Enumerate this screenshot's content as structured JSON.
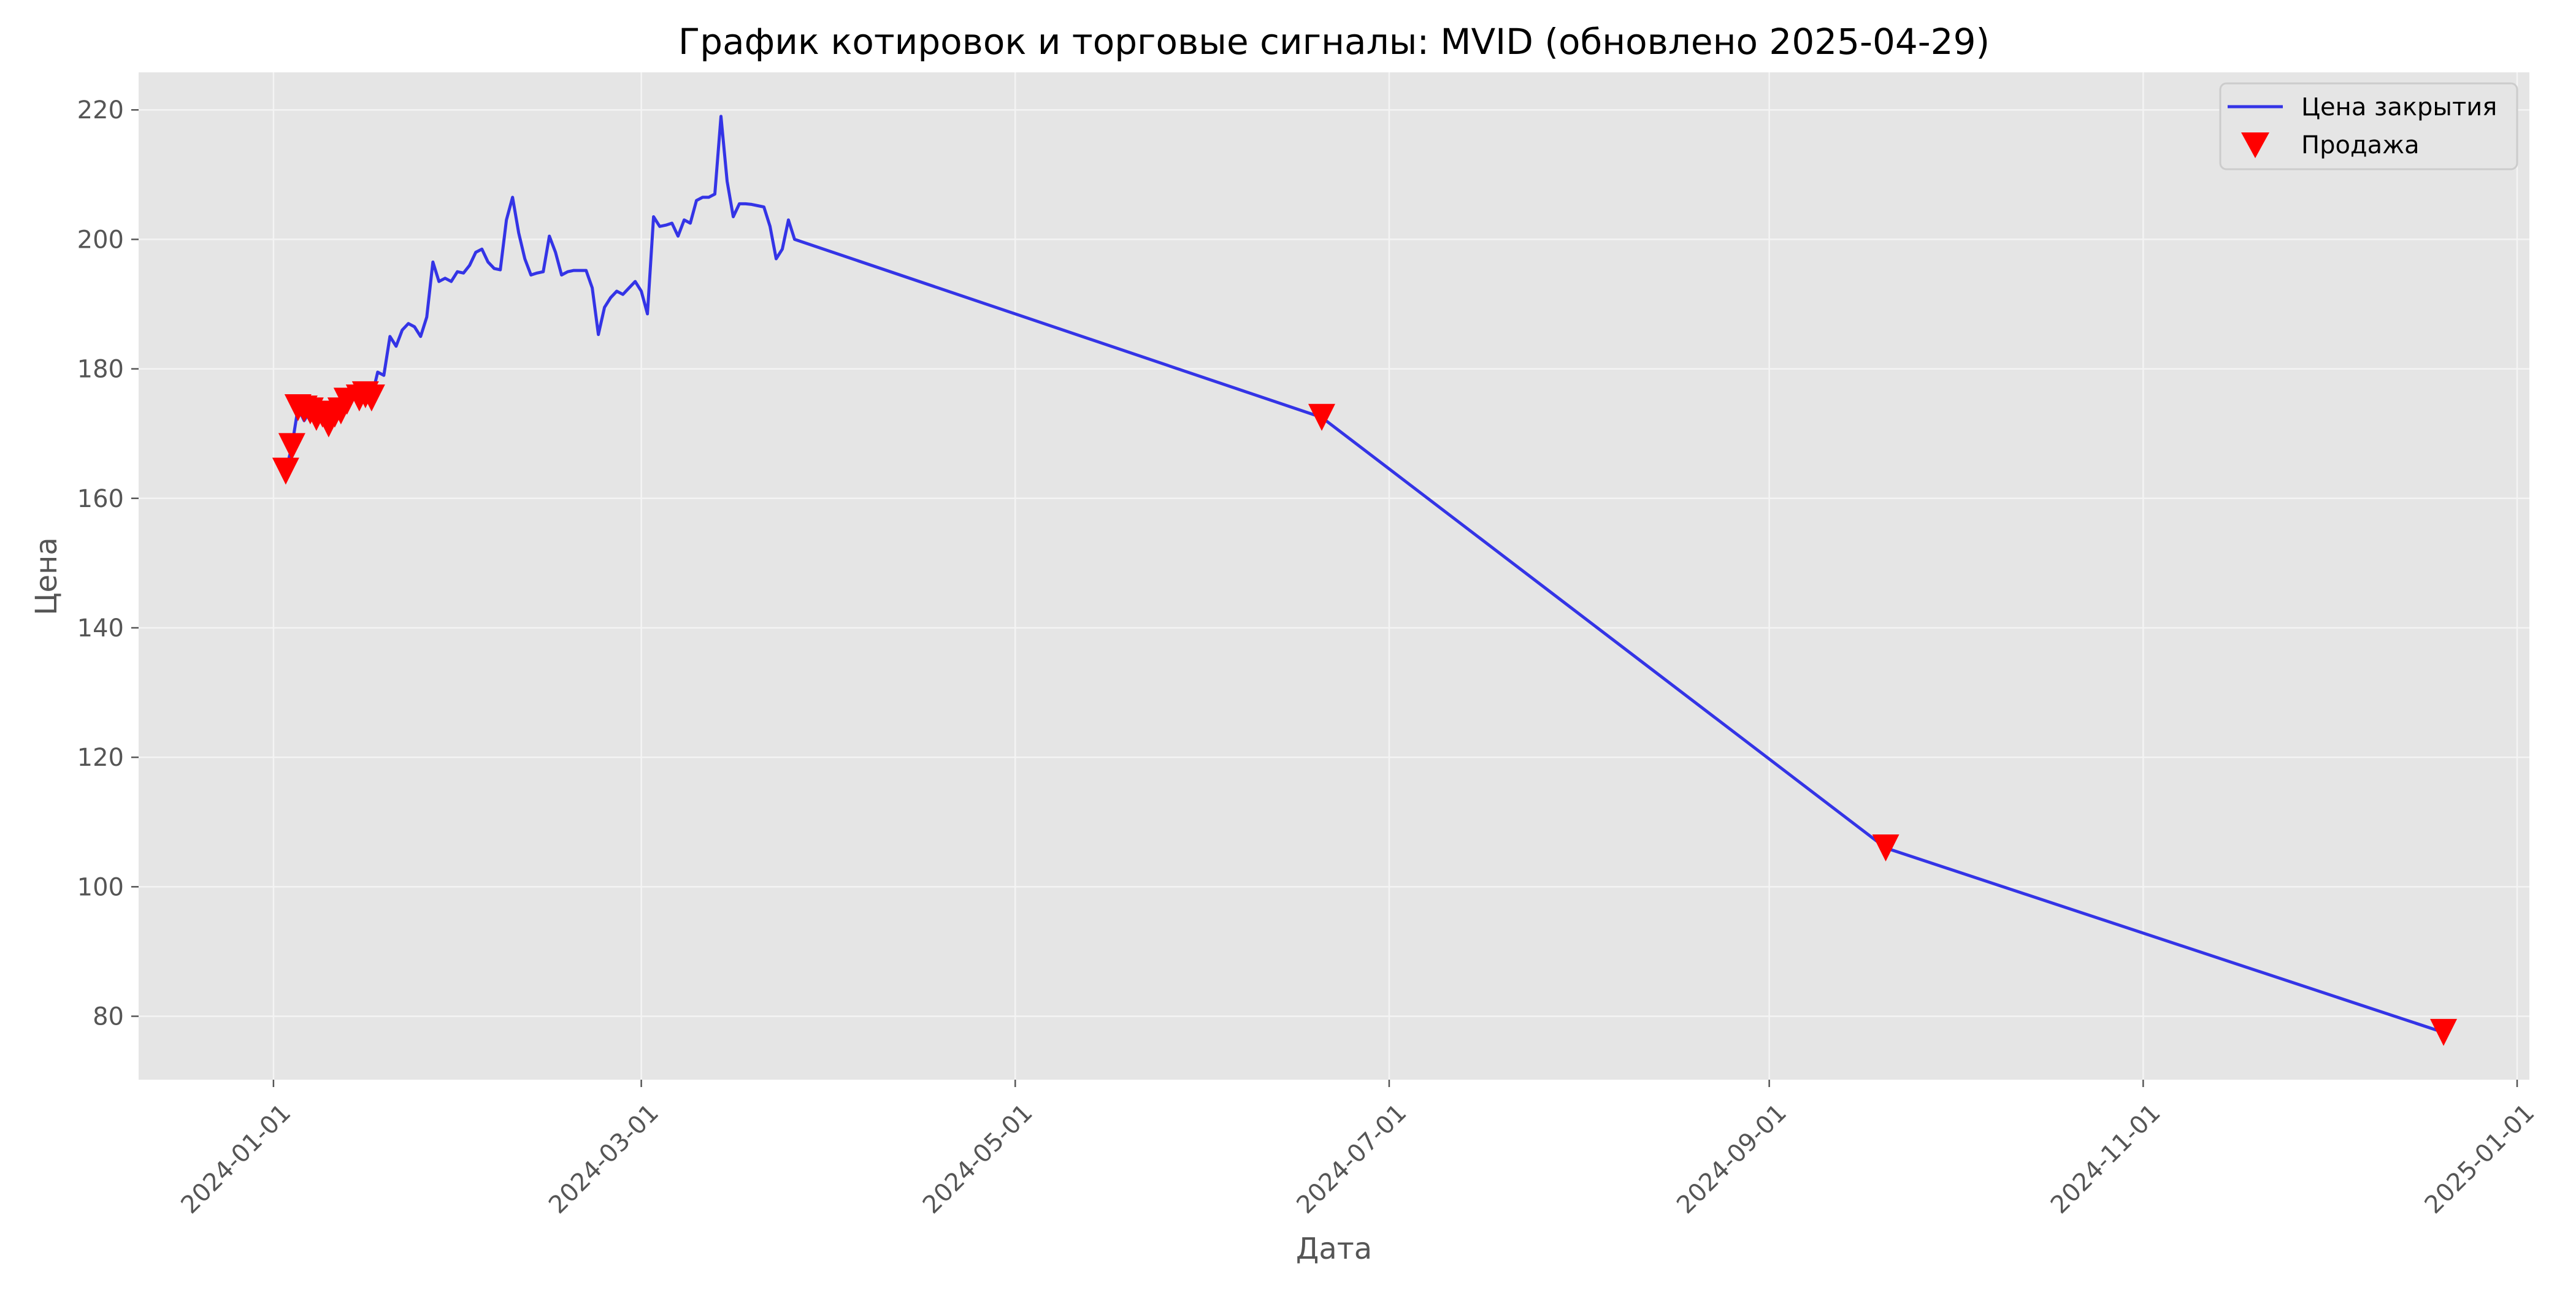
{
  "chart_data": {
    "type": "line",
    "title": "График котировок и торговые сигналы: MVID (обновлено 2025-04-29)",
    "xlabel": "Дата",
    "ylabel": "Цена",
    "x_axis_type": "date",
    "xlim": [
      "2023-12-10",
      "2025-01-03"
    ],
    "ylim": [
      70.2,
      225.8
    ],
    "x_ticks": [
      "2024-01-01",
      "2024-03-01",
      "2024-05-01",
      "2024-07-01",
      "2024-09-01",
      "2024-11-01",
      "2025-01-01"
    ],
    "y_ticks": [
      80,
      100,
      120,
      140,
      160,
      180,
      200,
      220
    ],
    "grid": true,
    "legend_position": "top-right",
    "colors": {
      "background": "#e5e5e5",
      "grid": "#f4f4f4",
      "line": "#3434e6",
      "sell": "#ff0000",
      "text": "#555555"
    },
    "series": [
      {
        "name": "Цена закрытия",
        "type": "line",
        "points": [
          [
            "2024-01-03",
            164.2
          ],
          [
            "2024-01-04",
            168.0
          ],
          [
            "2024-01-05",
            174.0
          ],
          [
            "2024-01-06",
            172.0
          ],
          [
            "2024-01-07",
            173.5
          ],
          [
            "2024-01-08",
            172.0
          ],
          [
            "2024-01-09",
            173.0
          ],
          [
            "2024-01-10",
            171.5
          ],
          [
            "2024-01-11",
            173.0
          ],
          [
            "2024-01-12",
            172.5
          ],
          [
            "2024-01-13",
            175.0
          ],
          [
            "2024-01-14",
            176.0
          ],
          [
            "2024-01-15",
            175.5
          ],
          [
            "2024-01-16",
            176.5
          ],
          [
            "2024-01-17",
            175.5
          ],
          [
            "2024-01-18",
            179.5
          ],
          [
            "2024-01-19",
            179.0
          ],
          [
            "2024-01-20",
            185.0
          ],
          [
            "2024-01-21",
            183.5
          ],
          [
            "2024-01-22",
            186.0
          ],
          [
            "2024-01-23",
            187.0
          ],
          [
            "2024-01-24",
            186.5
          ],
          [
            "2024-01-25",
            185.0
          ],
          [
            "2024-01-26",
            188.0
          ],
          [
            "2024-01-27",
            196.5
          ],
          [
            "2024-01-28",
            193.5
          ],
          [
            "2024-01-29",
            194.0
          ],
          [
            "2024-01-30",
            193.5
          ],
          [
            "2024-01-31",
            195.0
          ],
          [
            "2024-02-01",
            194.8
          ],
          [
            "2024-02-02",
            196.0
          ],
          [
            "2024-02-03",
            198.0
          ],
          [
            "2024-02-04",
            198.5
          ],
          [
            "2024-02-05",
            196.5
          ],
          [
            "2024-02-06",
            195.5
          ],
          [
            "2024-02-07",
            195.3
          ],
          [
            "2024-02-08",
            203.0
          ],
          [
            "2024-02-09",
            206.5
          ],
          [
            "2024-02-10",
            201.0
          ],
          [
            "2024-02-11",
            197.0
          ],
          [
            "2024-02-12",
            194.5
          ],
          [
            "2024-02-13",
            194.8
          ],
          [
            "2024-02-14",
            195.0
          ],
          [
            "2024-02-15",
            200.5
          ],
          [
            "2024-02-16",
            198.0
          ],
          [
            "2024-02-17",
            194.5
          ],
          [
            "2024-02-18",
            195.0
          ],
          [
            "2024-02-19",
            195.2
          ],
          [
            "2024-02-20",
            195.2
          ],
          [
            "2024-02-21",
            195.2
          ],
          [
            "2024-02-22",
            192.5
          ],
          [
            "2024-02-23",
            185.3
          ],
          [
            "2024-02-24",
            189.5
          ],
          [
            "2024-02-25",
            191.0
          ],
          [
            "2024-02-26",
            192.0
          ],
          [
            "2024-02-27",
            191.5
          ],
          [
            "2024-02-28",
            192.5
          ],
          [
            "2024-02-29",
            193.5
          ],
          [
            "2024-03-01",
            192.0
          ],
          [
            "2024-03-02",
            188.5
          ],
          [
            "2024-03-03",
            203.5
          ],
          [
            "2024-03-04",
            202.0
          ],
          [
            "2024-03-05",
            202.2
          ],
          [
            "2024-03-06",
            202.5
          ],
          [
            "2024-03-07",
            200.5
          ],
          [
            "2024-03-08",
            203.0
          ],
          [
            "2024-03-09",
            202.5
          ],
          [
            "2024-03-10",
            206.0
          ],
          [
            "2024-03-11",
            206.5
          ],
          [
            "2024-03-12",
            206.5
          ],
          [
            "2024-03-13",
            207.0
          ],
          [
            "2024-03-14",
            219.0
          ],
          [
            "2024-03-15",
            209.0
          ],
          [
            "2024-03-16",
            203.5
          ],
          [
            "2024-03-17",
            205.5
          ],
          [
            "2024-03-18",
            205.5
          ],
          [
            "2024-03-19",
            205.4
          ],
          [
            "2024-03-20",
            205.2
          ],
          [
            "2024-03-21",
            205.0
          ],
          [
            "2024-03-22",
            202.0
          ],
          [
            "2024-03-23",
            197.0
          ],
          [
            "2024-03-24",
            198.5
          ],
          [
            "2024-03-25",
            203.0
          ],
          [
            "2024-03-26",
            200.0
          ],
          [
            "2024-06-20",
            172.5
          ],
          [
            "2024-09-20",
            106.0
          ],
          [
            "2024-12-20",
            77.5
          ]
        ]
      },
      {
        "name": "Продажа",
        "type": "scatter",
        "marker": "triangle-down",
        "points": [
          [
            "2024-01-03",
            164.2
          ],
          [
            "2024-01-04",
            168.0
          ],
          [
            "2024-01-05",
            174.0
          ],
          [
            "2024-01-06",
            173.8
          ],
          [
            "2024-01-07",
            173.5
          ],
          [
            "2024-01-08",
            172.5
          ],
          [
            "2024-01-09",
            173.0
          ],
          [
            "2024-01-10",
            171.5
          ],
          [
            "2024-01-11",
            173.0
          ],
          [
            "2024-01-12",
            173.5
          ],
          [
            "2024-01-13",
            175.0
          ],
          [
            "2024-01-15",
            175.5
          ],
          [
            "2024-01-16",
            176.0
          ],
          [
            "2024-01-17",
            175.5
          ],
          [
            "2024-06-20",
            172.5
          ],
          [
            "2024-09-20",
            106.0
          ],
          [
            "2024-12-20",
            77.5
          ]
        ]
      }
    ]
  }
}
